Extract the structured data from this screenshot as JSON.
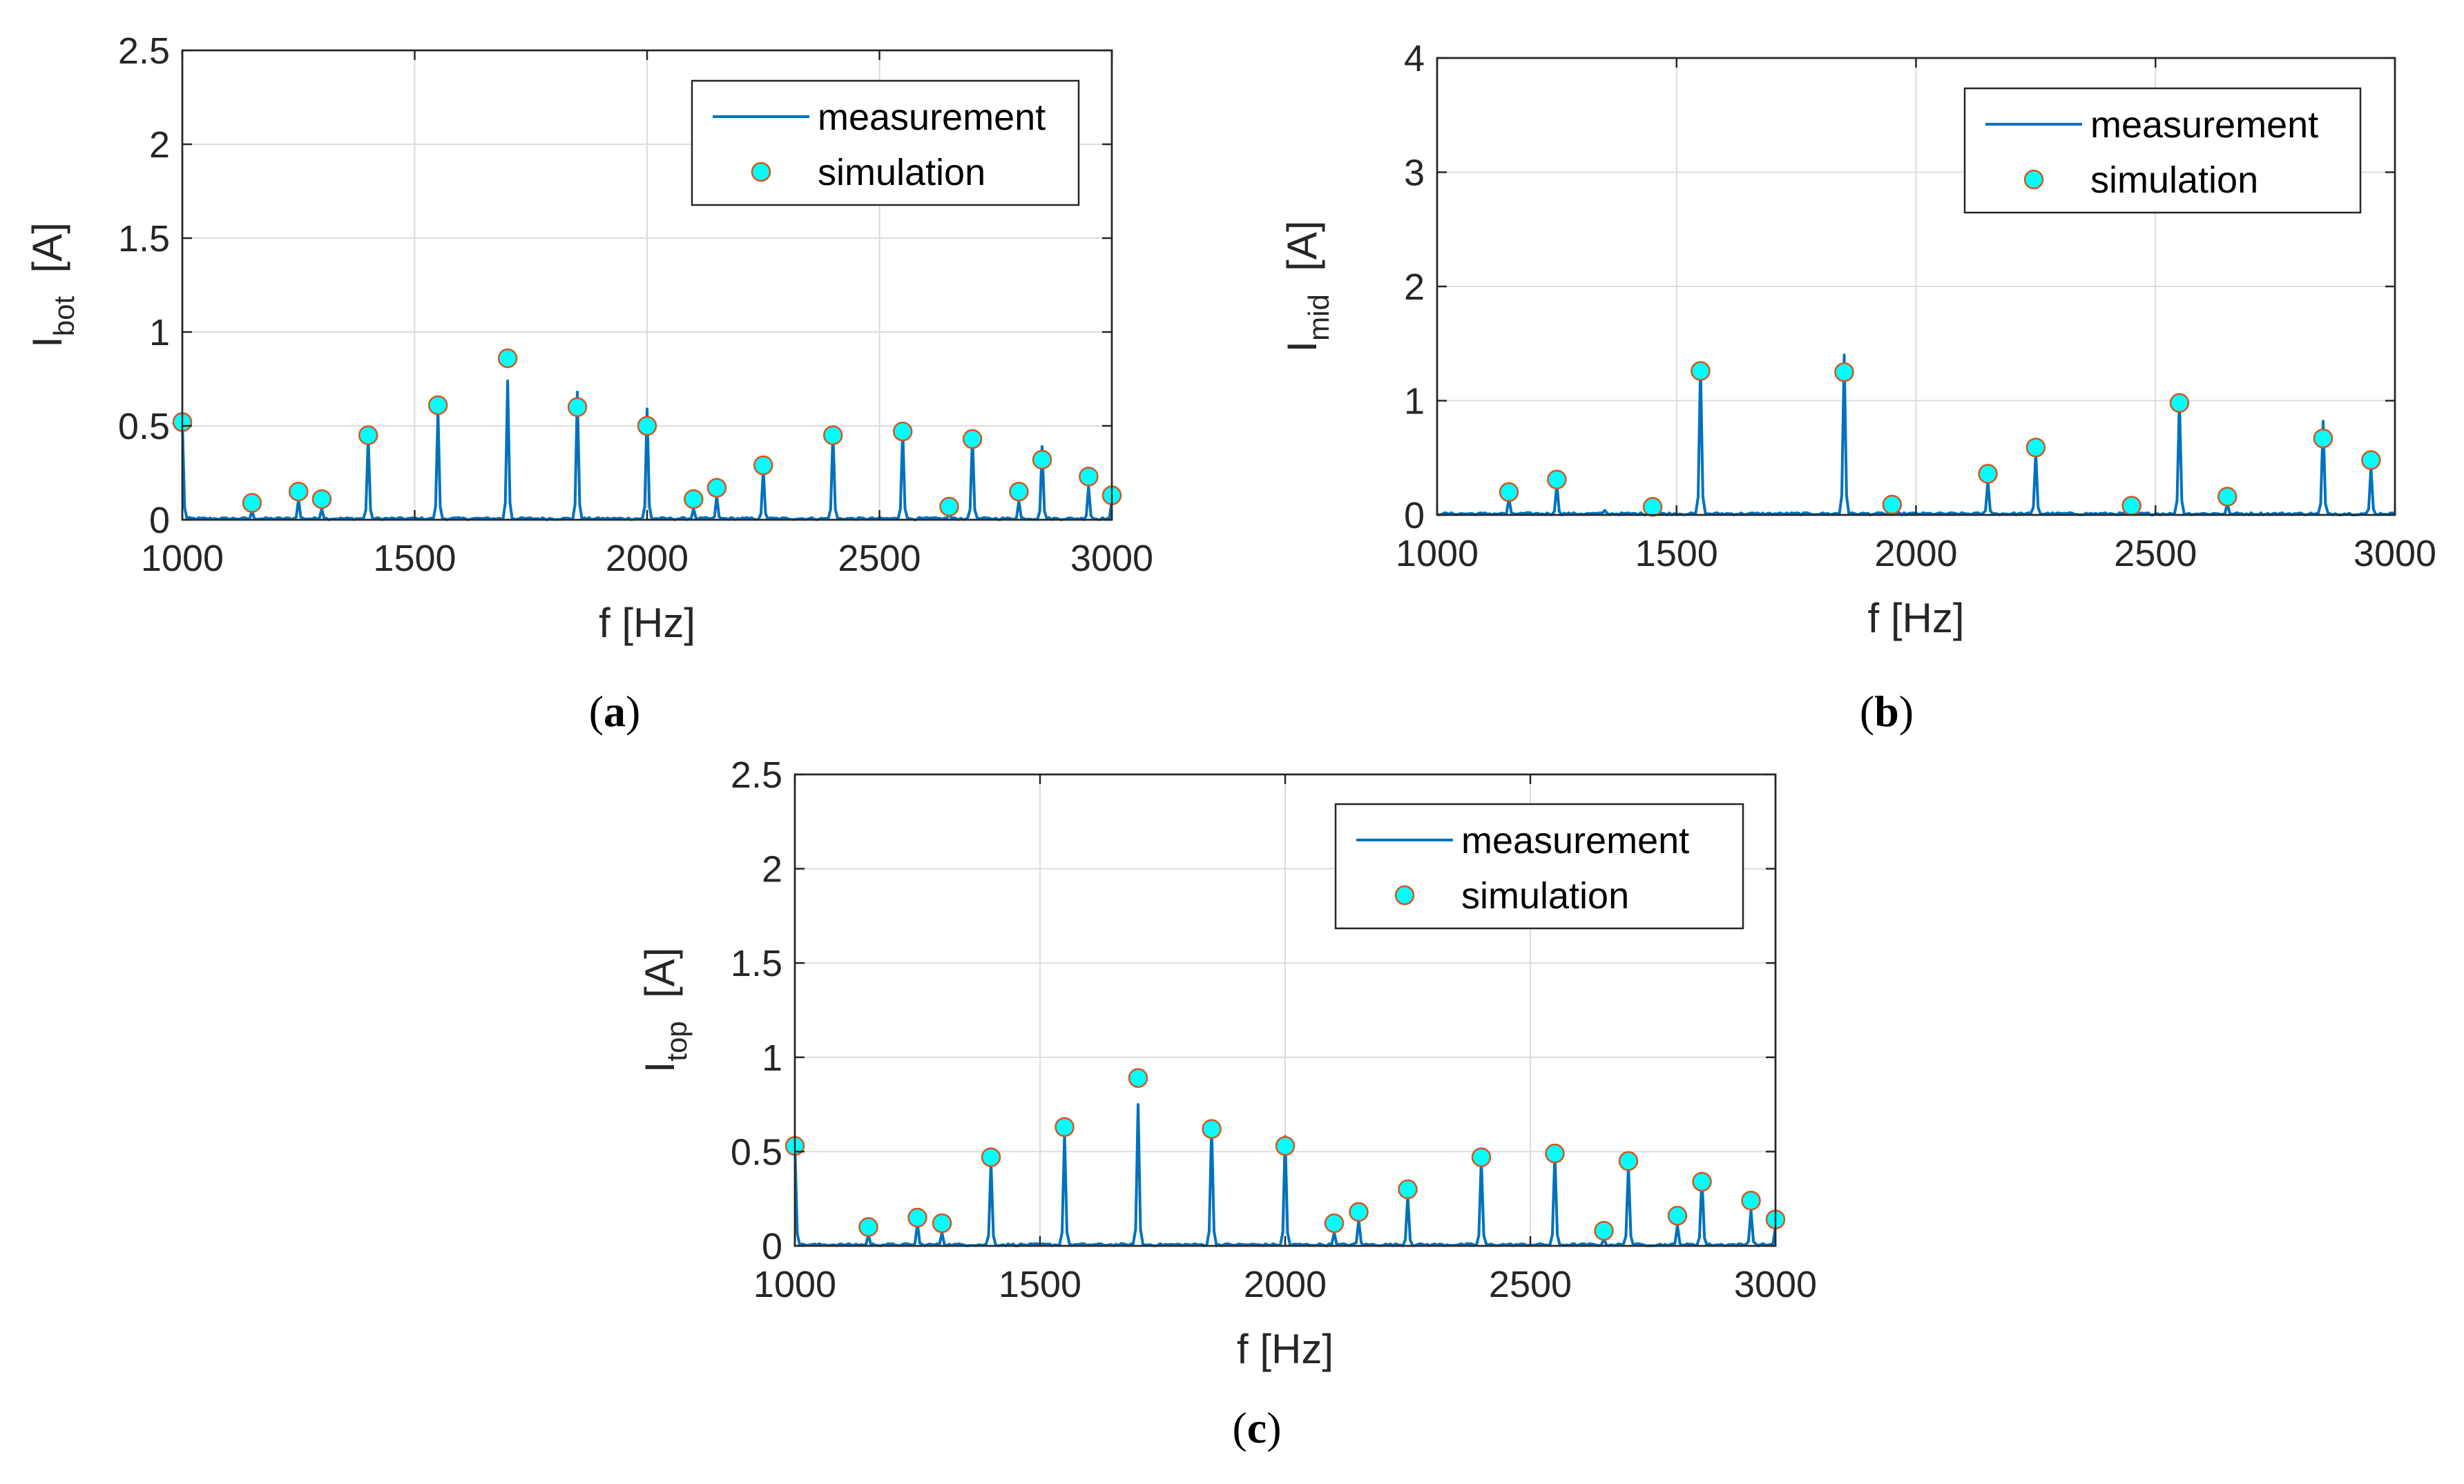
{
  "colors": {
    "measurement_line": "#0072BD",
    "sim_fill": "#00FFFF",
    "sim_edge": "#D95319"
  },
  "chart_data": [
    {
      "panel": "a",
      "panel_label": "(a)",
      "type": "line",
      "xlabel": "f [Hz]",
      "ylabel_main": "I",
      "ylabel_sub": "bot",
      "ylabel_unit": "[A]",
      "xlim": [
        1000,
        3000
      ],
      "ylim": [
        0,
        2.5
      ],
      "xticks": [
        1000,
        1500,
        2000,
        2500,
        3000
      ],
      "xtick_labels": [
        "1000",
        "1500",
        "2000",
        "2500",
        "3000"
      ],
      "yticks": [
        0,
        0.5,
        1,
        1.5,
        2,
        2.5
      ],
      "ytick_labels": [
        "0",
        "0.5",
        "1",
        "1.5",
        "2",
        "2.5"
      ],
      "grid": true,
      "legend": {
        "position": "top-right",
        "line_label": "measurement",
        "marker_label": "simulation"
      },
      "series": [
        {
          "name": "measurement",
          "style": "line",
          "peaks": [
            [
              1000,
              0.52
            ],
            [
              1150,
              0.05
            ],
            [
              1250,
              0.11
            ],
            [
              1300,
              0.06
            ],
            [
              1400,
              0.44
            ],
            [
              1550,
              0.58
            ],
            [
              1700,
              0.74
            ],
            [
              1850,
              0.68
            ],
            [
              2000,
              0.59
            ],
            [
              2100,
              0.06
            ],
            [
              2150,
              0.13
            ],
            [
              2250,
              0.27
            ],
            [
              2400,
              0.47
            ],
            [
              2550,
              0.48
            ],
            [
              2650,
              0.04
            ],
            [
              2700,
              0.45
            ],
            [
              2800,
              0.1
            ],
            [
              2850,
              0.39
            ],
            [
              2950,
              0.18
            ],
            [
              3000,
              0.1
            ]
          ],
          "noise_level": 0.012
        },
        {
          "name": "simulation",
          "style": "marker",
          "x": [
            1000,
            1150,
            1250,
            1300,
            1400,
            1550,
            1700,
            1850,
            2000,
            2100,
            2150,
            2250,
            2400,
            2550,
            2650,
            2700,
            2800,
            2850,
            2950,
            3000
          ],
          "y": [
            0.52,
            0.09,
            0.15,
            0.11,
            0.45,
            0.61,
            0.86,
            0.6,
            0.5,
            0.11,
            0.17,
            0.29,
            0.45,
            0.47,
            0.07,
            0.43,
            0.15,
            0.32,
            0.23,
            0.13
          ]
        }
      ]
    },
    {
      "panel": "b",
      "panel_label": "(b)",
      "type": "line",
      "xlabel": "f [Hz]",
      "ylabel_main": "I",
      "ylabel_sub": "mid",
      "ylabel_unit": "[A]",
      "xlim": [
        1000,
        3000
      ],
      "ylim": [
        0,
        4
      ],
      "xticks": [
        1000,
        1500,
        2000,
        2500,
        3000
      ],
      "xtick_labels": [
        "1000",
        "1500",
        "2000",
        "2500",
        "3000"
      ],
      "yticks": [
        0,
        1,
        2,
        3,
        4
      ],
      "ytick_labels": [
        "0",
        "1",
        "2",
        "3",
        "4"
      ],
      "grid": true,
      "legend": {
        "position": "top-right",
        "line_label": "measurement",
        "marker_label": "simulation"
      },
      "series": [
        {
          "name": "measurement",
          "style": "line",
          "peaks": [
            [
              1150,
              0.15
            ],
            [
              1250,
              0.27
            ],
            [
              1350,
              0.04
            ],
            [
              1450,
              0.05
            ],
            [
              1550,
              1.32
            ],
            [
              1850,
              1.4
            ],
            [
              1950,
              0.05
            ],
            [
              2150,
              0.3
            ],
            [
              2250,
              0.55
            ],
            [
              2450,
              0.04
            ],
            [
              2550,
              1.02
            ],
            [
              2650,
              0.1
            ],
            [
              2850,
              0.82
            ],
            [
              2950,
              0.42
            ]
          ],
          "noise_level": 0.02
        },
        {
          "name": "simulation",
          "style": "marker",
          "x": [
            1150,
            1250,
            1450,
            1550,
            1850,
            1950,
            2150,
            2250,
            2450,
            2550,
            2650,
            2850,
            2950
          ],
          "y": [
            0.2,
            0.31,
            0.07,
            1.26,
            1.25,
            0.09,
            0.36,
            0.59,
            0.08,
            0.98,
            0.16,
            0.67,
            0.48
          ]
        }
      ]
    },
    {
      "panel": "c",
      "panel_label": "(c)",
      "type": "line",
      "xlabel": "f [Hz]",
      "ylabel_main": "I",
      "ylabel_sub": "top",
      "ylabel_unit": "[A]",
      "xlim": [
        1000,
        3000
      ],
      "ylim": [
        0,
        2.5
      ],
      "xticks": [
        1000,
        1500,
        2000,
        2500,
        3000
      ],
      "xtick_labels": [
        "1000",
        "1500",
        "2000",
        "2500",
        "3000"
      ],
      "yticks": [
        0,
        0.5,
        1,
        1.5,
        2,
        2.5
      ],
      "ytick_labels": [
        "0",
        "0.5",
        "1",
        "1.5",
        "2",
        "2.5"
      ],
      "grid": true,
      "legend": {
        "position": "top-right",
        "line_label": "measurement",
        "marker_label": "simulation"
      },
      "series": [
        {
          "name": "measurement",
          "style": "line",
          "peaks": [
            [
              1000,
              0.54
            ],
            [
              1150,
              0.06
            ],
            [
              1250,
              0.12
            ],
            [
              1300,
              0.07
            ],
            [
              1400,
              0.45
            ],
            [
              1550,
              0.6
            ],
            [
              1700,
              0.75
            ],
            [
              1850,
              0.64
            ],
            [
              2000,
              0.58
            ],
            [
              2100,
              0.07
            ],
            [
              2150,
              0.14
            ],
            [
              2250,
              0.27
            ],
            [
              2400,
              0.46
            ],
            [
              2550,
              0.49
            ],
            [
              2650,
              0.04
            ],
            [
              2700,
              0.43
            ],
            [
              2800,
              0.11
            ],
            [
              2850,
              0.37
            ],
            [
              2950,
              0.19
            ],
            [
              3000,
              0.1
            ]
          ],
          "noise_level": 0.012
        },
        {
          "name": "simulation",
          "style": "marker",
          "x": [
            1000,
            1150,
            1250,
            1300,
            1400,
            1550,
            1700,
            1850,
            2000,
            2100,
            2150,
            2250,
            2400,
            2550,
            2650,
            2700,
            2800,
            2850,
            2950,
            3000
          ],
          "y": [
            0.53,
            0.1,
            0.15,
            0.12,
            0.47,
            0.63,
            0.89,
            0.62,
            0.53,
            0.12,
            0.18,
            0.3,
            0.47,
            0.49,
            0.08,
            0.45,
            0.16,
            0.34,
            0.24,
            0.14
          ]
        }
      ]
    }
  ]
}
